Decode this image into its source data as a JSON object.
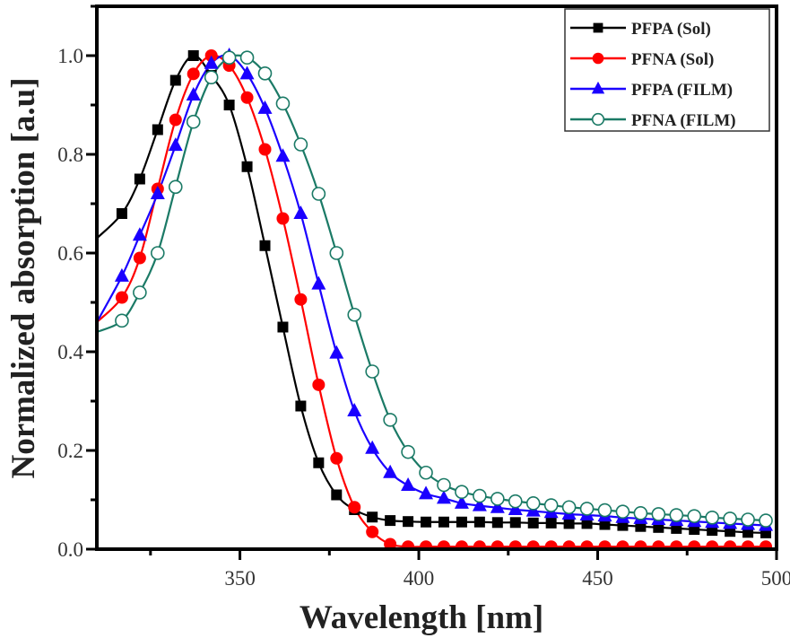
{
  "chart_data": {
    "type": "line",
    "title": "",
    "xlabel": "Wavelength [nm]",
    "ylabel": "Normalized absorption [a.u]",
    "xlim": [
      310,
      500
    ],
    "ylim": [
      0,
      1.1
    ],
    "xticks": [
      350,
      400,
      450,
      500
    ],
    "xtick_labels": [
      "350",
      "400",
      "450",
      "500"
    ],
    "yticks": [
      0,
      0.2,
      0.4,
      0.6,
      0.8,
      1.0
    ],
    "ytick_labels": [
      "0.0",
      "0.2",
      "0.4",
      "0.6",
      "0.8",
      "1.0"
    ],
    "grid": false,
    "legend_position": "top-right",
    "x": [
      310,
      317,
      322,
      327,
      332,
      337,
      342,
      347,
      352,
      357,
      362,
      367,
      372,
      377,
      382,
      387,
      392,
      397,
      402,
      407,
      412,
      417,
      422,
      427,
      432,
      437,
      442,
      447,
      452,
      457,
      462,
      467,
      472,
      477,
      482,
      487,
      492,
      497
    ],
    "series": [
      {
        "name": "PFPA (Sol)",
        "color": "#000000",
        "marker": "square",
        "values": [
          0.63,
          0.68,
          0.75,
          0.85,
          0.95,
          1.0,
          0.96,
          0.9,
          0.775,
          0.615,
          0.45,
          0.29,
          0.175,
          0.11,
          0.08,
          0.065,
          0.058,
          0.056,
          0.055,
          0.055,
          0.055,
          0.055,
          0.054,
          0.054,
          0.053,
          0.053,
          0.052,
          0.052,
          0.05,
          0.048,
          0.046,
          0.044,
          0.042,
          0.04,
          0.038,
          0.036,
          0.034,
          0.033
        ]
      },
      {
        "name": "PFNA (Sol)",
        "color": "#ff0000",
        "marker": "circle",
        "values": [
          0.46,
          0.51,
          0.59,
          0.73,
          0.87,
          0.963,
          1.0,
          0.98,
          0.915,
          0.81,
          0.67,
          0.506,
          0.333,
          0.184,
          0.085,
          0.035,
          0.01,
          0.005,
          0.005,
          0.005,
          0.005,
          0.005,
          0.005,
          0.005,
          0.005,
          0.005,
          0.005,
          0.005,
          0.005,
          0.005,
          0.005,
          0.005,
          0.005,
          0.005,
          0.005,
          0.005,
          0.005,
          0.005
        ]
      },
      {
        "name": "PFPA (FILM)",
        "color": "#1a00ff",
        "marker": "triangle",
        "values": [
          0.46,
          0.553,
          0.636,
          0.72,
          0.818,
          0.92,
          0.984,
          1.0,
          0.963,
          0.893,
          0.796,
          0.68,
          0.537,
          0.397,
          0.28,
          0.204,
          0.155,
          0.129,
          0.112,
          0.103,
          0.093,
          0.088,
          0.084,
          0.08,
          0.077,
          0.074,
          0.071,
          0.069,
          0.067,
          0.064,
          0.062,
          0.06,
          0.058,
          0.056,
          0.054,
          0.052,
          0.05,
          0.048
        ]
      },
      {
        "name": "PFNA (FILM)",
        "color": "#1b7a66",
        "marker": "open-circle",
        "values": [
          0.44,
          0.463,
          0.52,
          0.6,
          0.734,
          0.866,
          0.956,
          0.996,
          0.996,
          0.964,
          0.903,
          0.82,
          0.72,
          0.6,
          0.475,
          0.36,
          0.262,
          0.197,
          0.155,
          0.13,
          0.116,
          0.108,
          0.102,
          0.097,
          0.093,
          0.089,
          0.085,
          0.082,
          0.079,
          0.076,
          0.073,
          0.071,
          0.069,
          0.067,
          0.064,
          0.062,
          0.06,
          0.058
        ]
      }
    ]
  }
}
